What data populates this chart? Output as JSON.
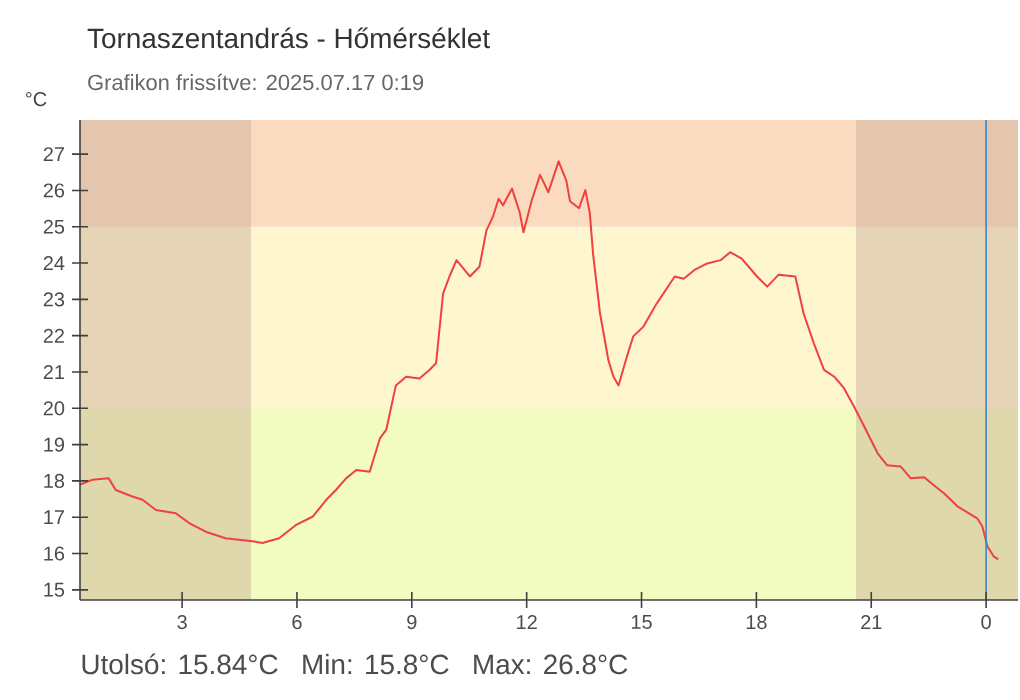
{
  "chart_data": {
    "type": "line",
    "title": "Tornaszentandrás - Hőmérséklet",
    "subtitle": "Grafikon frissítve: 2025.07.17 0:19",
    "ylabel": "°C",
    "annotations": [
      "Utolsó: 15.84°C",
      "Min: 15.8°C",
      "Max: 26.8°C"
    ],
    "xlim": [
      "2025-07-16T00:20",
      "2025-07-17T00:50"
    ],
    "ylim": [
      14.72,
      27.94
    ],
    "xticks": [
      {
        "value": "2025-07-16T03:00",
        "label": "3"
      },
      {
        "value": "2025-07-16T06:00",
        "label": "6"
      },
      {
        "value": "2025-07-16T09:00",
        "label": "9"
      },
      {
        "value": "2025-07-16T12:00",
        "label": "12"
      },
      {
        "value": "2025-07-16T15:00",
        "label": "15"
      },
      {
        "value": "2025-07-16T18:00",
        "label": "18"
      },
      {
        "value": "2025-07-16T21:00",
        "label": "21"
      },
      {
        "value": "2025-07-17T00:00",
        "label": "0"
      }
    ],
    "yticks": [
      15,
      16,
      17,
      18,
      19,
      20,
      21,
      22,
      23,
      24,
      25,
      26,
      27
    ],
    "grid": false,
    "marker": "none",
    "line_style": "solid",
    "bands": [
      {
        "axis": "y",
        "from": 14.72,
        "to": 20,
        "color": "#f2fcc0"
      },
      {
        "axis": "y",
        "from": 20,
        "to": 25,
        "color": "#fdf6cf"
      },
      {
        "axis": "y",
        "from": 25,
        "to": 27.94,
        "color": "#fadbbf"
      },
      {
        "axis": "x",
        "from": "2025-07-16T00:20",
        "to": "2025-07-16T04:48",
        "color": "#c8ad96"
      },
      {
        "axis": "x",
        "from": "2025-07-16T20:36",
        "to": "2025-07-17T00:50",
        "color": "#c8ad96"
      }
    ],
    "ref_lines": [
      {
        "axis": "x",
        "value": "2025-07-17T00:00",
        "color": "#3a87c8"
      }
    ],
    "series": [
      {
        "color": "#f04040",
        "x": [
          "2025-07-16T00:20",
          "2025-07-16T00:39",
          "2025-07-16T01:05",
          "2025-07-16T01:16",
          "2025-07-16T01:42",
          "2025-07-16T01:58",
          "2025-07-16T02:19",
          "2025-07-16T02:50",
          "2025-07-16T03:11",
          "2025-07-16T03:37",
          "2025-07-16T04:08",
          "2025-07-16T04:50",
          "2025-07-16T05:06",
          "2025-07-16T05:32",
          "2025-07-16T05:58",
          "2025-07-16T06:25",
          "2025-07-16T06:46",
          "2025-07-16T07:01",
          "2025-07-16T07:17",
          "2025-07-16T07:33",
          "2025-07-16T07:54",
          "2025-07-16T08:10",
          "2025-07-16T08:20",
          "2025-07-16T08:35",
          "2025-07-16T08:51",
          "2025-07-16T09:12",
          "2025-07-16T09:28",
          "2025-07-16T09:38",
          "2025-07-16T09:49",
          "2025-07-16T09:59",
          "2025-07-16T10:10",
          "2025-07-16T10:31",
          "2025-07-16T10:46",
          "2025-07-16T10:57",
          "2025-07-16T11:07",
          "2025-07-16T11:16",
          "2025-07-16T11:23",
          "2025-07-16T11:37",
          "2025-07-16T11:49",
          "2025-07-16T11:55",
          "2025-07-16T12:08",
          "2025-07-16T12:21",
          "2025-07-16T12:34",
          "2025-07-16T12:50",
          "2025-07-16T13:02",
          "2025-07-16T13:08",
          "2025-07-16T13:22",
          "2025-07-16T13:32",
          "2025-07-16T13:39",
          "2025-07-16T13:44",
          "2025-07-16T13:55",
          "2025-07-16T14:08",
          "2025-07-16T14:16",
          "2025-07-16T14:24",
          "2025-07-16T14:37",
          "2025-07-16T14:47",
          "2025-07-16T15:03",
          "2025-07-16T15:24",
          "2025-07-16T15:52",
          "2025-07-16T16:06",
          "2025-07-16T16:23",
          "2025-07-16T16:43",
          "2025-07-16T17:04",
          "2025-07-16T17:19",
          "2025-07-16T17:37",
          "2025-07-16T18:01",
          "2025-07-16T18:17",
          "2025-07-16T18:35",
          "2025-07-16T19:01",
          "2025-07-16T19:14",
          "2025-07-16T19:30",
          "2025-07-16T19:46",
          "2025-07-16T20:02",
          "2025-07-16T20:17",
          "2025-07-16T20:33",
          "2025-07-16T20:49",
          "2025-07-16T21:10",
          "2025-07-16T21:25",
          "2025-07-16T21:46",
          "2025-07-16T22:02",
          "2025-07-16T22:23",
          "2025-07-16T22:38",
          "2025-07-16T22:54",
          "2025-07-16T23:15",
          "2025-07-16T23:46",
          "2025-07-16T23:54",
          "2025-07-17T00:02",
          "2025-07-17T00:12",
          "2025-07-17T00:19"
        ],
        "values": [
          17.9,
          18.03,
          18.07,
          17.75,
          17.57,
          17.48,
          17.2,
          17.11,
          16.84,
          16.6,
          16.42,
          16.34,
          16.29,
          16.42,
          16.78,
          17.02,
          17.48,
          17.75,
          18.07,
          18.3,
          18.25,
          19.17,
          19.41,
          20.63,
          20.87,
          20.82,
          21.06,
          21.24,
          23.16,
          23.63,
          24.08,
          23.63,
          23.9,
          24.9,
          25.27,
          25.77,
          25.59,
          26.05,
          25.4,
          24.85,
          25.73,
          26.43,
          25.95,
          26.8,
          26.28,
          25.7,
          25.51,
          26.01,
          25.37,
          24.26,
          22.61,
          21.33,
          20.87,
          20.63,
          21.42,
          21.98,
          22.25,
          22.89,
          23.63,
          23.57,
          23.81,
          23.99,
          24.08,
          24.3,
          24.12,
          23.63,
          23.35,
          23.68,
          23.63,
          22.61,
          21.79,
          21.06,
          20.87,
          20.56,
          20.05,
          19.5,
          18.76,
          18.43,
          18.4,
          18.07,
          18.1,
          17.88,
          17.66,
          17.3,
          16.97,
          16.75,
          16.2,
          15.92,
          15.84
        ]
      }
    ]
  }
}
